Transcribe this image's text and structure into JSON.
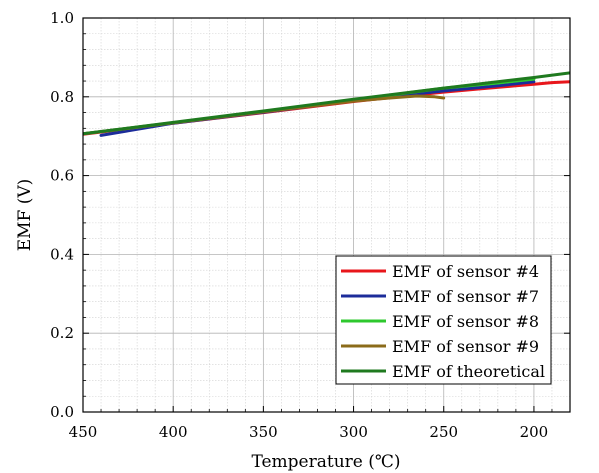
{
  "chart_data": {
    "type": "line",
    "title": "",
    "xlabel": "Temperature (℃)",
    "ylabel": "EMF (V)",
    "xlim": [
      450,
      180
    ],
    "x_reversed": true,
    "ylim": [
      0.0,
      1.0
    ],
    "x_ticks": [
      450,
      400,
      350,
      300,
      250,
      200
    ],
    "y_ticks": [
      0.0,
      0.2,
      0.4,
      0.6,
      0.8,
      1.0
    ],
    "x_tick_labels": [
      "450",
      "400",
      "350",
      "300",
      "250",
      "200"
    ],
    "y_tick_labels": [
      "0.0",
      "0.2",
      "0.4",
      "0.6",
      "0.8",
      "1.0"
    ],
    "grid": true,
    "minor_grid": true,
    "legend_position": "bottom-right",
    "series": [
      {
        "name": "EMF of sensor #4",
        "color": "#e8161b",
        "x": [
          450,
          400,
          350,
          300,
          250,
          230,
          210,
          200,
          190,
          180
        ],
        "y": [
          0.705,
          0.733,
          0.76,
          0.788,
          0.812,
          0.82,
          0.828,
          0.832,
          0.836,
          0.838
        ]
      },
      {
        "name": "EMF of sensor #7",
        "color": "#1c2c9a",
        "x": [
          440,
          400,
          350,
          300,
          250,
          220,
          200
        ],
        "y": [
          0.702,
          0.733,
          0.761,
          0.79,
          0.815,
          0.828,
          0.838
        ]
      },
      {
        "name": "EMF of sensor #8",
        "color": "#2ec82e",
        "x": [
          450,
          400,
          350,
          300,
          250,
          220,
          200
        ],
        "y": [
          0.706,
          0.734,
          0.763,
          0.792,
          0.822,
          0.835,
          0.845
        ]
      },
      {
        "name": "EMF of sensor #9",
        "color": "#8b6b1a",
        "x": [
          450,
          400,
          350,
          300,
          280,
          265,
          255,
          250
        ],
        "y": [
          0.706,
          0.734,
          0.762,
          0.789,
          0.797,
          0.802,
          0.8,
          0.797
        ]
      },
      {
        "name": "EMF of theoretical",
        "color": "#1f7a1f",
        "x": [
          450,
          400,
          350,
          300,
          250,
          200,
          180
        ],
        "y": [
          0.706,
          0.735,
          0.764,
          0.794,
          0.822,
          0.849,
          0.861
        ]
      }
    ]
  }
}
